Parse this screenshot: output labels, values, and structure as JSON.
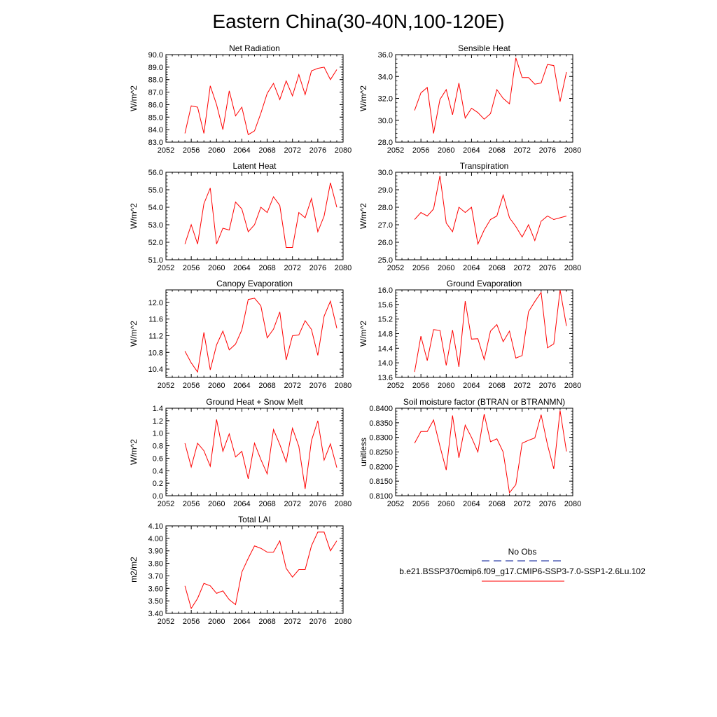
{
  "page_title": "Eastern China(30-40N,100-120E)",
  "legend": {
    "obs_label": "No Obs",
    "obs_color": "#3344aa",
    "model_label": "b.e21.BSSP370cmip6.f09_g17.CMIP6-SSP3-7.0-SSP1-2.6Lu.102",
    "model_color": "#ff0000"
  },
  "chart_data": [
    {
      "type": "line",
      "title": "Net Radiation",
      "ylabel": "W/m^2",
      "xlim": [
        2052,
        2080
      ],
      "ylim": [
        83.0,
        90.0
      ],
      "xticks": [
        "2052",
        "2056",
        "2060",
        "2064",
        "2068",
        "2072",
        "2076",
        "2080"
      ],
      "yticks": [
        "83.0",
        "84.0",
        "85.0",
        "86.0",
        "87.0",
        "88.0",
        "89.0",
        "90.0"
      ],
      "series": [
        {
          "x": [
            2055,
            2056,
            2057,
            2058,
            2059,
            2060,
            2061,
            2062,
            2063,
            2064,
            2065,
            2066,
            2067,
            2068,
            2069,
            2070,
            2071,
            2072,
            2073,
            2074,
            2075,
            2076,
            2077,
            2078,
            2079
          ],
          "values": [
            83.7,
            85.9,
            85.8,
            83.7,
            87.5,
            86.0,
            84.0,
            87.1,
            85.1,
            85.8,
            83.6,
            83.9,
            85.3,
            86.9,
            87.7,
            86.4,
            87.9,
            86.7,
            88.4,
            86.8,
            88.7,
            88.9,
            89.0,
            88.0,
            88.8
          ]
        }
      ]
    },
    {
      "type": "line",
      "title": "Sensible Heat",
      "ylabel": "W/m^2",
      "xlim": [
        2052,
        2080
      ],
      "ylim": [
        28.0,
        36.0
      ],
      "xticks": [
        "2052",
        "2056",
        "2060",
        "2064",
        "2068",
        "2072",
        "2076",
        "2080"
      ],
      "yticks": [
        "28.0",
        "30.0",
        "32.0",
        "34.0",
        "36.0"
      ],
      "series": [
        {
          "x": [
            2055,
            2056,
            2057,
            2058,
            2059,
            2060,
            2061,
            2062,
            2063,
            2064,
            2065,
            2066,
            2067,
            2068,
            2069,
            2070,
            2071,
            2072,
            2073,
            2074,
            2075,
            2076,
            2077,
            2078,
            2079
          ],
          "values": [
            30.9,
            32.5,
            33.0,
            28.8,
            31.9,
            32.8,
            30.5,
            33.4,
            30.2,
            31.1,
            30.7,
            30.1,
            30.6,
            32.8,
            32.0,
            31.5,
            35.7,
            33.9,
            33.9,
            33.3,
            33.4,
            35.1,
            35.0,
            31.7,
            34.4
          ]
        }
      ]
    },
    {
      "type": "line",
      "title": "Latent Heat",
      "ylabel": "W/m^2",
      "xlim": [
        2052,
        2080
      ],
      "ylim": [
        51.0,
        56.0
      ],
      "xticks": [
        "2052",
        "2056",
        "2060",
        "2064",
        "2068",
        "2072",
        "2076",
        "2080"
      ],
      "yticks": [
        "51.0",
        "52.0",
        "53.0",
        "54.0",
        "55.0",
        "56.0"
      ],
      "series": [
        {
          "x": [
            2055,
            2056,
            2057,
            2058,
            2059,
            2060,
            2061,
            2062,
            2063,
            2064,
            2065,
            2066,
            2067,
            2068,
            2069,
            2070,
            2071,
            2072,
            2073,
            2074,
            2075,
            2076,
            2077,
            2078,
            2079
          ],
          "values": [
            51.9,
            53.0,
            51.9,
            54.2,
            55.1,
            51.9,
            52.8,
            52.7,
            54.3,
            53.9,
            52.6,
            53.0,
            54.0,
            53.7,
            54.6,
            54.1,
            51.7,
            51.7,
            53.7,
            53.4,
            54.5,
            52.6,
            53.5,
            55.4,
            54.0
          ]
        }
      ]
    },
    {
      "type": "line",
      "title": "Transpiration",
      "ylabel": "W/m^2",
      "xlim": [
        2052,
        2080
      ],
      "ylim": [
        25.0,
        30.0
      ],
      "xticks": [
        "2052",
        "2056",
        "2060",
        "2064",
        "2068",
        "2072",
        "2076",
        "2080"
      ],
      "yticks": [
        "25.0",
        "26.0",
        "27.0",
        "28.0",
        "29.0",
        "30.0"
      ],
      "series": [
        {
          "x": [
            2055,
            2056,
            2057,
            2058,
            2059,
            2060,
            2061,
            2062,
            2063,
            2064,
            2065,
            2066,
            2067,
            2068,
            2069,
            2070,
            2071,
            2072,
            2073,
            2074,
            2075,
            2076,
            2077,
            2078,
            2079
          ],
          "values": [
            27.3,
            27.7,
            27.5,
            27.9,
            29.8,
            27.1,
            26.6,
            28.0,
            27.7,
            28.0,
            25.9,
            26.7,
            27.3,
            27.5,
            28.7,
            27.4,
            26.9,
            26.3,
            27.0,
            26.1,
            27.2,
            27.5,
            27.3,
            27.4,
            27.5
          ]
        }
      ]
    },
    {
      "type": "line",
      "title": "Canopy Evaporation",
      "ylabel": "W/m^2",
      "xlim": [
        2052,
        2080
      ],
      "ylim": [
        10.2,
        12.3
      ],
      "xticks": [
        "2052",
        "2056",
        "2060",
        "2064",
        "2068",
        "2072",
        "2076",
        "2080"
      ],
      "yticks": [
        "10.4",
        "10.8",
        "11.2",
        "11.6",
        "12.0"
      ],
      "series": [
        {
          "x": [
            2055,
            2056,
            2057,
            2058,
            2059,
            2060,
            2061,
            2062,
            2063,
            2064,
            2065,
            2066,
            2067,
            2068,
            2069,
            2070,
            2071,
            2072,
            2073,
            2074,
            2075,
            2076,
            2077,
            2078,
            2079
          ],
          "values": [
            10.83,
            10.55,
            10.33,
            11.28,
            10.38,
            10.98,
            11.31,
            10.86,
            11.0,
            11.34,
            12.07,
            12.1,
            11.92,
            11.15,
            11.36,
            11.77,
            10.62,
            11.2,
            11.22,
            11.56,
            11.35,
            10.73,
            11.67,
            12.03,
            11.38
          ]
        }
      ]
    },
    {
      "type": "line",
      "title": "Ground Evaporation",
      "ylabel": "W/m^2",
      "xlim": [
        2052,
        2080
      ],
      "ylim": [
        13.6,
        16.0
      ],
      "xticks": [
        "2052",
        "2056",
        "2060",
        "2064",
        "2068",
        "2072",
        "2076",
        "2080"
      ],
      "yticks": [
        "13.6",
        "14.0",
        "14.4",
        "14.8",
        "15.2",
        "15.6",
        "16.0"
      ],
      "series": [
        {
          "x": [
            2055,
            2056,
            2057,
            2058,
            2059,
            2060,
            2061,
            2062,
            2063,
            2064,
            2065,
            2066,
            2067,
            2068,
            2069,
            2070,
            2071,
            2072,
            2073,
            2074,
            2075,
            2076,
            2077,
            2078,
            2079
          ],
          "values": [
            13.75,
            14.73,
            14.06,
            14.91,
            14.89,
            13.93,
            14.9,
            13.89,
            15.69,
            14.65,
            14.66,
            14.09,
            14.87,
            15.05,
            14.58,
            14.87,
            14.13,
            14.2,
            15.4,
            15.68,
            15.93,
            14.41,
            14.52,
            16.0,
            15.01
          ]
        }
      ]
    },
    {
      "type": "line",
      "title": "Ground Heat + Snow Melt",
      "ylabel": "W/m^2",
      "xlim": [
        2052,
        2080
      ],
      "ylim": [
        0.0,
        1.4
      ],
      "xticks": [
        "2052",
        "2056",
        "2060",
        "2064",
        "2068",
        "2072",
        "2076",
        "2080"
      ],
      "yticks": [
        "0.0",
        "0.2",
        "0.4",
        "0.6",
        "0.8",
        "1.0",
        "1.2",
        "1.4"
      ],
      "series": [
        {
          "x": [
            2055,
            2056,
            2057,
            2058,
            2059,
            2060,
            2061,
            2062,
            2063,
            2064,
            2065,
            2066,
            2067,
            2068,
            2069,
            2070,
            2071,
            2072,
            2073,
            2074,
            2075,
            2076,
            2077,
            2078,
            2079
          ],
          "values": [
            0.84,
            0.46,
            0.84,
            0.72,
            0.47,
            1.22,
            0.71,
            0.99,
            0.62,
            0.71,
            0.27,
            0.84,
            0.58,
            0.35,
            1.06,
            0.82,
            0.54,
            1.08,
            0.79,
            0.11,
            0.88,
            1.2,
            0.57,
            0.83,
            0.45
          ]
        }
      ]
    },
    {
      "type": "line",
      "title": "Soil moisture factor (BTRAN or BTRANMN)",
      "ylabel": "unitless",
      "xlim": [
        2052,
        2080
      ],
      "ylim": [
        0.81,
        0.84
      ],
      "xticks": [
        "2052",
        "2056",
        "2060",
        "2064",
        "2068",
        "2072",
        "2076",
        "2080"
      ],
      "yticks": [
        "0.8100",
        "0.8150",
        "0.8200",
        "0.8250",
        "0.8300",
        "0.8350",
        "0.8400"
      ],
      "series": [
        {
          "x": [
            2055,
            2056,
            2057,
            2058,
            2059,
            2060,
            2061,
            2062,
            2063,
            2064,
            2065,
            2066,
            2067,
            2068,
            2069,
            2070,
            2071,
            2072,
            2073,
            2074,
            2075,
            2076,
            2077,
            2078,
            2079
          ],
          "values": [
            0.828,
            0.832,
            0.832,
            0.836,
            0.827,
            0.8188,
            0.8375,
            0.823,
            0.8342,
            0.83,
            0.825,
            0.838,
            0.8285,
            0.8295,
            0.825,
            0.811,
            0.8138,
            0.828,
            0.829,
            0.8298,
            0.8378,
            0.8275,
            0.8192,
            0.8392,
            0.8252
          ]
        }
      ]
    },
    {
      "type": "line",
      "title": "Total LAI",
      "ylabel": "m2/m2",
      "xlim": [
        2052,
        2080
      ],
      "ylim": [
        3.4,
        4.1
      ],
      "xticks": [
        "2052",
        "2056",
        "2060",
        "2064",
        "2068",
        "2072",
        "2076",
        "2080"
      ],
      "yticks": [
        "3.40",
        "3.50",
        "3.60",
        "3.70",
        "3.80",
        "3.90",
        "4.00",
        "4.10"
      ],
      "series": [
        {
          "x": [
            2055,
            2056,
            2057,
            2058,
            2059,
            2060,
            2061,
            2062,
            2063,
            2064,
            2065,
            2066,
            2067,
            2068,
            2069,
            2070,
            2071,
            2072,
            2073,
            2074,
            2075,
            2076,
            2077,
            2078,
            2079
          ],
          "values": [
            3.62,
            3.44,
            3.52,
            3.64,
            3.62,
            3.56,
            3.58,
            3.51,
            3.47,
            3.73,
            3.84,
            3.94,
            3.92,
            3.89,
            3.89,
            3.98,
            3.76,
            3.69,
            3.75,
            3.75,
            3.94,
            4.05,
            4.05,
            3.9,
            3.98
          ]
        }
      ]
    }
  ]
}
